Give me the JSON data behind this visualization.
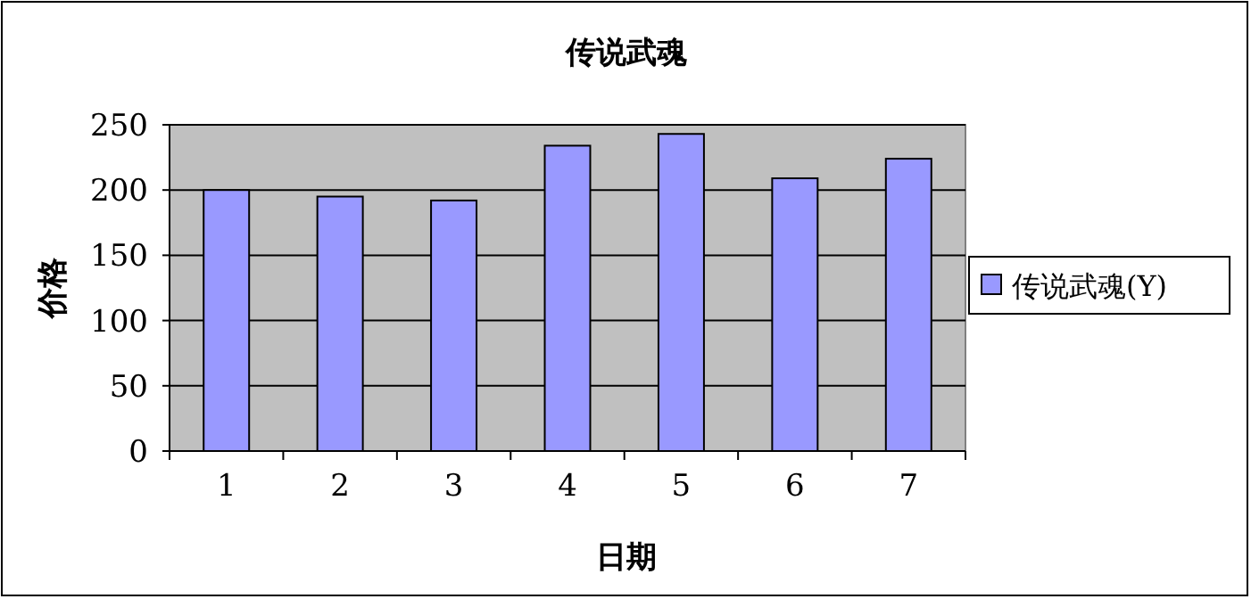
{
  "chart_data": {
    "type": "bar",
    "title": "传说武魂",
    "xlabel": "日期",
    "ylabel": "价格",
    "categories": [
      "1",
      "2",
      "3",
      "4",
      "5",
      "6",
      "7"
    ],
    "series": [
      {
        "name": "传说武魂(Y)",
        "color": "#9999ff",
        "values": [
          200,
          195,
          192,
          234,
          243,
          209,
          224
        ]
      }
    ],
    "ylim": [
      0,
      250
    ],
    "yticks": [
      0,
      50,
      100,
      150,
      200,
      250
    ],
    "grid": "y",
    "legend": "right"
  }
}
